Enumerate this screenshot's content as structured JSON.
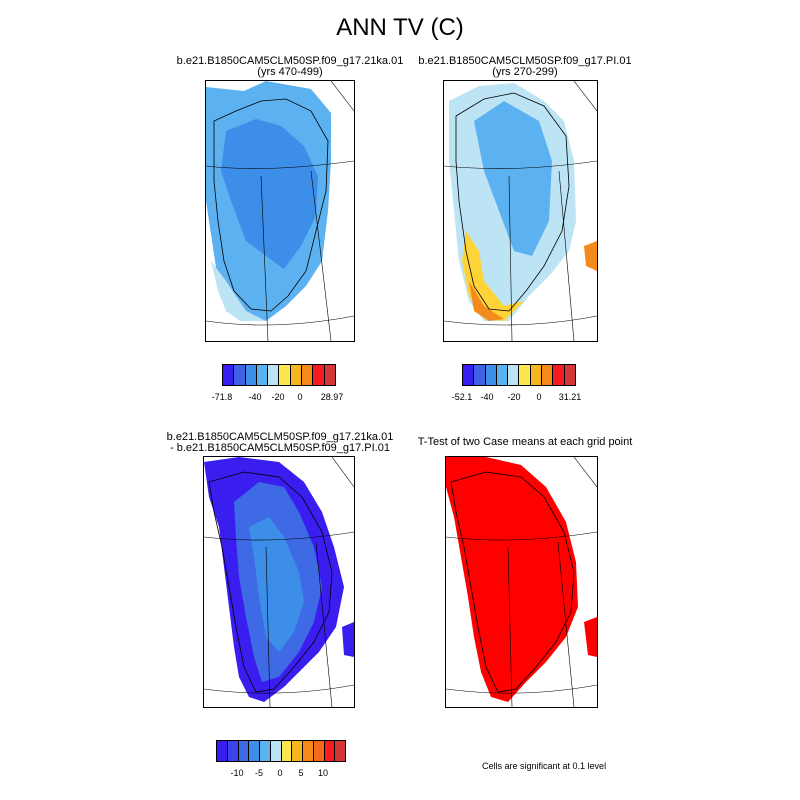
{
  "title": "ANN TV (C)",
  "panels": [
    {
      "id": "p1",
      "title_line1": "b.e21.B1850CAM5CLM50SP.f09_g17.21ka.01",
      "title_line2": "(yrs 470-499)"
    },
    {
      "id": "p2",
      "title_line1": "b.e21.B1850CAM5CLM50SP.f09_g17.PI.01",
      "title_line2": "(yrs 270-299)"
    },
    {
      "id": "p3",
      "title_line1": "b.e21.B1850CAM5CLM50SP.f09_g17.21ka.01",
      "title_line2": "- b.e21.B1850CAM5CLM50SP.f09_g17.PI.01"
    },
    {
      "id": "p4",
      "title_line1": "T-Test of two Case means at each grid point",
      "title_line2": ""
    }
  ],
  "colorbars": {
    "cb1": {
      "colors": [
        "#3a1ef0",
        "#3f61e6",
        "#3d8ee8",
        "#5cb2f0",
        "#bde4f4",
        "#fde64e",
        "#f7b520",
        "#f58a1c",
        "#f51d1d",
        "#d23636"
      ],
      "labels": [
        "-71.8",
        "-40",
        "-20",
        "0",
        "28.97"
      ]
    },
    "cb2": {
      "colors": [
        "#3a1ef0",
        "#3f61e6",
        "#3d8ee8",
        "#5cb2f0",
        "#bde4f4",
        "#fde64e",
        "#f7b520",
        "#f58a1c",
        "#f51d1d",
        "#d23636"
      ],
      "labels": [
        "-52.1",
        "-40",
        "-20",
        "0",
        "31.21"
      ]
    },
    "cb3": {
      "colors": [
        "#3a1ef0",
        "#3b43ea",
        "#3f6ae6",
        "#3d8ee8",
        "#5cb2f0",
        "#bde4f4",
        "#fde64e",
        "#f7b520",
        "#f58a1c",
        "#f56a1a",
        "#f51d1d",
        "#d23636"
      ],
      "labels": [
        "-10",
        "-5",
        "0",
        "5",
        "10"
      ]
    }
  },
  "note": "Cells are significant at 0.1 level",
  "map_colors": {
    "light_blue": "#5cb2f0",
    "mid_blue": "#3d8ee8",
    "pale_blue": "#bde4f4",
    "yellow": "#fed337",
    "orange": "#f58a1c",
    "deep_blue": "#3a1ef0",
    "medium_blue": "#3f6ae6",
    "sig_red": "#ff0000"
  }
}
